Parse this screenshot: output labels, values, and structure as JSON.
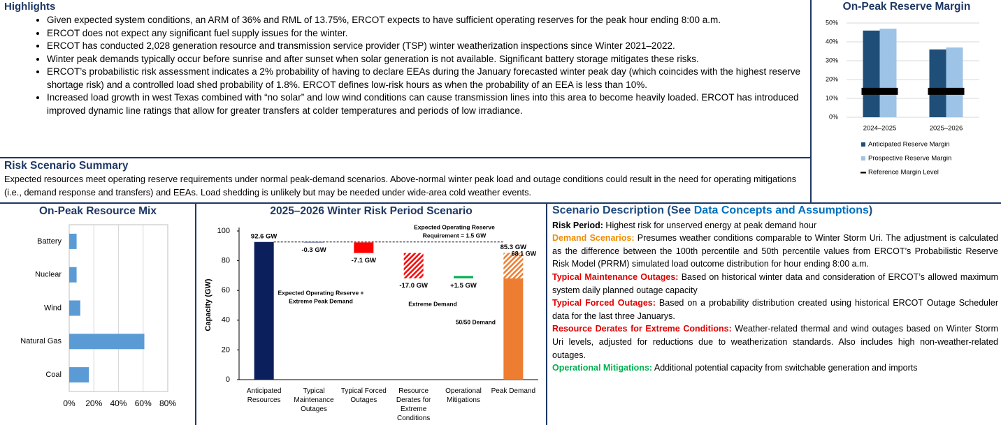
{
  "highlights": {
    "title": "Highlights",
    "bullets": [
      "Given expected system conditions, an ARM of 36% and RML of 13.75%, ERCOT expects to have sufficient operating reserves for the peak hour ending 8:00 a.m.",
      "ERCOT does not expect any significant fuel supply issues for the winter.",
      "ERCOT has conducted 2,028 generation resource and transmission service provider (TSP) winter weatherization inspections since Winter 2021–2022.",
      "Winter peak demands typically occur before sunrise and after sunset when solar generation is not available. Significant battery storage mitigates these risks.",
      "ERCOT’s probabilistic risk assessment indicates a 2% probability of having to declare EEAs during the January forecasted winter peak day (which coincides with the highest reserve shortage risk) and a controlled load shed probability of 1.8%. ERCOT defines low-risk hours as when the probability of an EEA is less than 10%.",
      "Increased load growth in west Texas combined with “no solar” and low wind conditions can cause transmission lines into this area to become heavily loaded. ERCOT has introduced improved dynamic line ratings that allow for greater transfers at colder temperatures and periods of low irradiance."
    ]
  },
  "risk_summary": {
    "title": "Risk Scenario Summary",
    "text": "Expected resources meet operating reserve requirements under normal peak-demand scenarios. Above-normal winter peak load and outage conditions could result in the need for operating mitigations (i.e., demand response and transfers) and EEAs. Load shedding is unlikely but may be needed under wide-area cold weather events."
  },
  "scenario_description": {
    "title_prefix": "Scenario Description (See",
    "title_link": "Data Concepts and Assumptions",
    "title_suffix": ")",
    "items": [
      {
        "label": "Risk Period:",
        "color": "#000000",
        "text": "Highest risk for unserved energy at peak demand hour"
      },
      {
        "label": "Demand Scenarios:",
        "color": "#f08c00",
        "text": "Presumes weather conditions comparable to Winter Storm Uri. The adjustment is calculated as the difference between the 100th percentile and 50th percentile values from ERCOT’s Probabilistic Reserve Risk Model (PRRM) simulated load outcome distribution for hour ending 8:00 a.m."
      },
      {
        "label": "Typical Maintenance Outages:",
        "color": "#e00000",
        "text": "Based on historical winter data and consideration of ERCOT’s allowed maximum system daily planned outage capacity"
      },
      {
        "label": "Typical Forced Outages:",
        "color": "#e00000",
        "text": "Based on a probability distribution created using historical ERCOT Outage Scheduler data for the last three Januarys."
      },
      {
        "label": "Resource Derates for Extreme Conditions:",
        "color": "#e00000",
        "text": "Weather-related thermal and wind outages based on Winter Storm Uri levels, adjusted for reductions due to weatherization standards. Also includes high non-weather-related outages."
      },
      {
        "label": "Operational Mitigations:",
        "color": "#00b050",
        "text": "Additional potential capacity from switchable generation and imports"
      }
    ]
  },
  "chart_data": [
    {
      "type": "bar",
      "title": "On-Peak Reserve Margin",
      "categories": [
        "2024–2025",
        "2025–2026"
      ],
      "series": [
        {
          "name": "Anticipated Reserve Margin",
          "color": "#1f4e79",
          "values": [
            46,
            36
          ]
        },
        {
          "name": "Prospective Reserve Margin",
          "color": "#9dc3e6",
          "values": [
            47,
            37
          ]
        },
        {
          "name": "Reference Margin Level",
          "color": "#000000",
          "mark": "marker",
          "values": [
            13.75,
            13.75
          ]
        }
      ],
      "ylim": [
        0,
        50
      ],
      "yticks": [
        {
          "value": 0,
          "label": "0%"
        },
        {
          "value": 10,
          "label": "10%"
        },
        {
          "value": 20,
          "label": "20%"
        },
        {
          "value": 30,
          "label": "30%"
        },
        {
          "value": 40,
          "label": "40%"
        },
        {
          "value": 50,
          "label": "50%"
        }
      ],
      "grid": true,
      "legend": "bottom"
    },
    {
      "type": "hbar",
      "title": "On-Peak Resource Mix",
      "categories": [
        "Battery",
        "Nuclear",
        "Wind",
        "Natural Gas",
        "Coal"
      ],
      "values": [
        6,
        6,
        9,
        61,
        16
      ],
      "color": "#5b9bd5",
      "xlim": [
        0,
        80
      ],
      "xticks": [
        {
          "value": 0,
          "label": "0%"
        },
        {
          "value": 20,
          "label": "20%"
        },
        {
          "value": 40,
          "label": "40%"
        },
        {
          "value": 60,
          "label": "60%"
        },
        {
          "value": 80,
          "label": "80%"
        }
      ],
      "grid": true
    },
    {
      "type": "waterfall",
      "title": "2025–2026 Winter Risk Period Scenario",
      "y_label": "Capacity (GW)",
      "categories": [
        "Anticipated Resources",
        "Typical Maintenance Outages",
        "Typical Forced Outages",
        "Resource Derates for Extreme Conditions",
        "Operational Mitigations",
        "Peak Demand"
      ],
      "values": [
        92.6,
        -0.3,
        -7.1,
        -17.0,
        1.5,
        85.3
      ],
      "value_labels": [
        "92.6 GW",
        "-0.3 GW",
        "-7.1 GW",
        "-17.0 GW",
        "+1.5 GW",
        "85.3 GW"
      ],
      "colors": [
        "#0b1f5c",
        "#0b1f5c",
        "#ff0000",
        "#ff0000",
        "#00b050",
        "#ed7d31"
      ],
      "hatched": [
        false,
        false,
        false,
        true,
        false,
        true
      ],
      "peak_base": 68.1,
      "peak_base_label": "68.1 GW",
      "ylim": [
        0,
        100
      ],
      "yticks": [
        0,
        20,
        40,
        60,
        80,
        100
      ],
      "annotations": {
        "reserve_requirement": [
          "Expected Operating Reserve",
          "Requirement = 1.5 GW"
        ],
        "reserve_extreme": [
          "Expected Operating Reserve +",
          "Extreme Peak Demand"
        ],
        "extreme_demand": "Extreme Demand",
        "normal_demand": "50/50 Demand"
      }
    }
  ]
}
